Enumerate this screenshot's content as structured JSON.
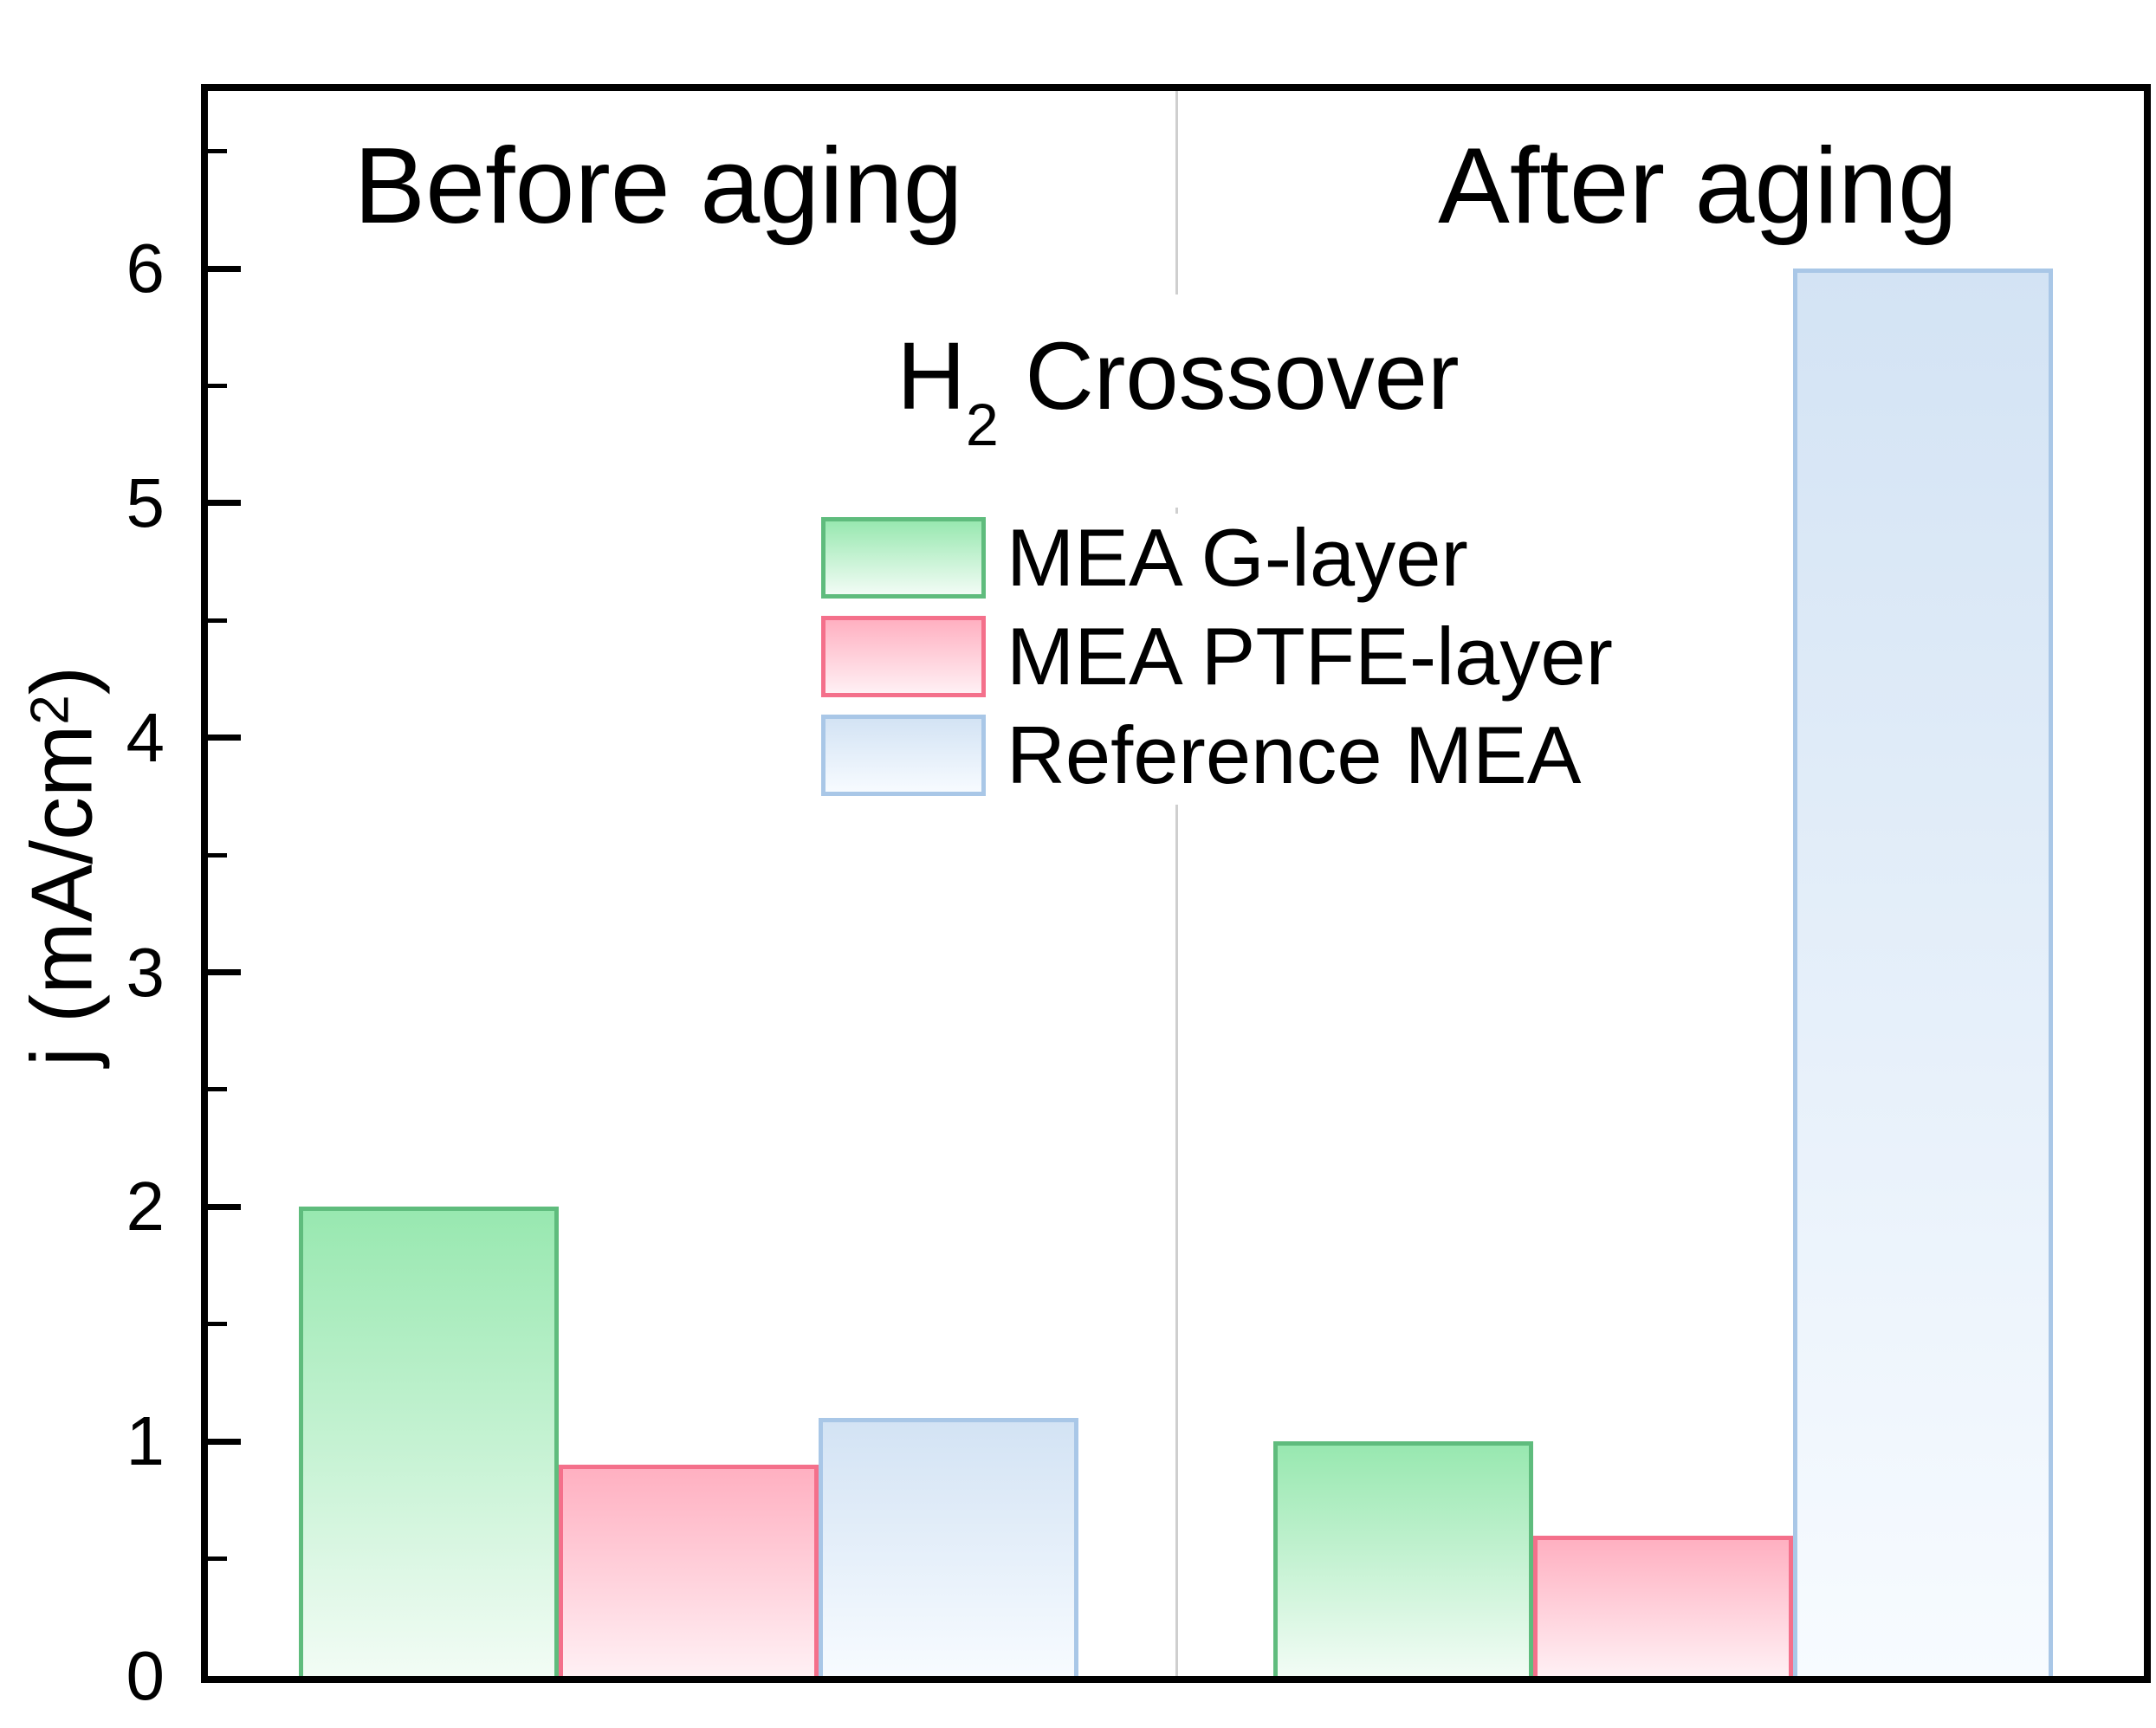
{
  "chart_data": {
    "type": "bar",
    "title_text": "H2 Crossover",
    "title_parts": {
      "base": "H",
      "sub": "2",
      "rest": " Crossover"
    },
    "ylabel_text": "j (mA/cm^2)",
    "ylabel_parts": {
      "prefix": "j (mA/cm",
      "sup": "2",
      "suffix": ")"
    },
    "groups": [
      "Before aging",
      "After aging"
    ],
    "series": [
      {
        "name": "MEA G-layer",
        "values": [
          2.0,
          1.0
        ],
        "border_color": "#5fbc7d",
        "fill_top": "#98e8b0",
        "fill_bottom": "#f2fcf5"
      },
      {
        "name": "MEA PTFE-layer",
        "values": [
          0.9,
          0.6
        ],
        "border_color": "#f4708b",
        "fill_top": "#ffb0c1",
        "fill_bottom": "#fff0f4"
      },
      {
        "name": "Reference MEA",
        "values": [
          1.1,
          6.0
        ],
        "border_color": "#a9c7e7",
        "fill_top": "#d3e3f4",
        "fill_bottom": "#f7fbff"
      }
    ],
    "y_axis": {
      "min": 0,
      "max": 6.76,
      "major_ticks": [
        0,
        1,
        2,
        3,
        4,
        5,
        6
      ],
      "tick_labels": [
        "0",
        "1",
        "2",
        "3",
        "4",
        "5",
        "6"
      ],
      "minor_ticks": [
        0.5,
        1.5,
        2.5,
        3.5,
        4.5,
        5.5,
        6.5
      ]
    },
    "legend_position": "inside-top-center",
    "grid": false,
    "divider_color": "#cfcfcf",
    "axis_color": "#000000",
    "background_color": "#ffffff"
  }
}
